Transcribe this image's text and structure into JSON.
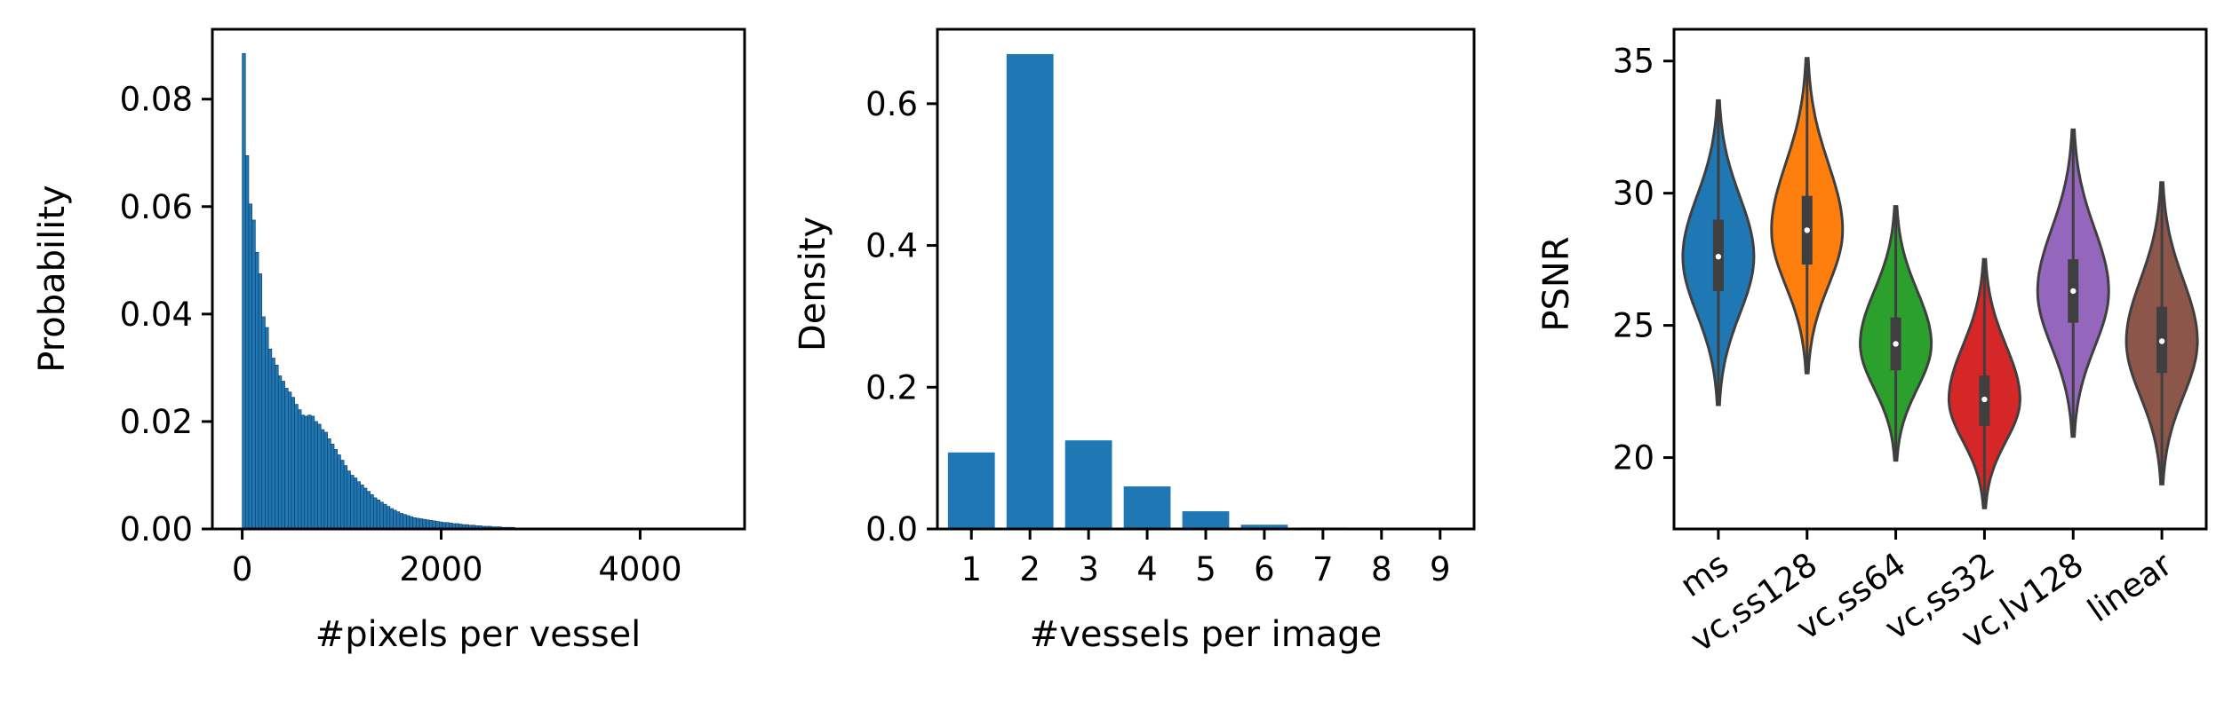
{
  "chart_data": [
    {
      "type": "histogram",
      "xlabel": "#pixels per vessel",
      "ylabel": "Probability",
      "xlim": [
        -300,
        5050
      ],
      "ylim": [
        0,
        0.093
      ],
      "xticks": [
        0,
        2000,
        4000
      ],
      "xtick_labels": [
        "0",
        "2000",
        "4000"
      ],
      "yticks": [
        0,
        0.02,
        0.04,
        0.06,
        0.08
      ],
      "ytick_labels": [
        "0.00",
        "0.02",
        "0.04",
        "0.06",
        "0.08"
      ],
      "bin_width": 33,
      "bins_start": 0,
      "values": [
        0.0885,
        0.0695,
        0.0605,
        0.0575,
        0.0515,
        0.0475,
        0.0395,
        0.0375,
        0.0335,
        0.0318,
        0.0305,
        0.0285,
        0.0275,
        0.0262,
        0.0255,
        0.0245,
        0.0232,
        0.0222,
        0.0212,
        0.021,
        0.0212,
        0.021,
        0.02,
        0.0195,
        0.0185,
        0.018,
        0.0168,
        0.0158,
        0.0148,
        0.0138,
        0.0128,
        0.0118,
        0.0108,
        0.01,
        0.0095,
        0.0088,
        0.0082,
        0.0076,
        0.007,
        0.0064,
        0.0058,
        0.0054,
        0.005,
        0.0046,
        0.0042,
        0.0038,
        0.0035,
        0.0032,
        0.0029,
        0.0027,
        0.0025,
        0.0023,
        0.0021,
        0.002,
        0.0019,
        0.0018,
        0.0017,
        0.0016,
        0.0015,
        0.0014,
        0.0013,
        0.0012,
        0.0012,
        0.0011,
        0.001,
        0.001,
        0.0009,
        0.0008,
        0.0008,
        0.0007,
        0.0007,
        0.0006,
        0.0006,
        0.0005,
        0.0005,
        0.0005,
        0.0004,
        0.0004,
        0.0004,
        0.0003,
        0.0003,
        0.0003,
        0.0003,
        0.0002,
        0.0002,
        0.0002,
        0.0002,
        0.0002,
        0.0001,
        0.0001,
        0.0001,
        0.0001,
        0.0001,
        0.0001,
        0.0001,
        0.0001,
        0.0001,
        0.0001
      ],
      "color": "#1f77b4"
    },
    {
      "type": "bar",
      "xlabel": "#vessels per image",
      "ylabel": "Density",
      "categories": [
        "1",
        "2",
        "3",
        "4",
        "5",
        "6",
        "7",
        "8",
        "9"
      ],
      "values": [
        0.108,
        0.67,
        0.125,
        0.06,
        0.025,
        0.006,
        0.002,
        0.001,
        0.0005
      ],
      "ylim": [
        0,
        0.705
      ],
      "yticks": [
        0,
        0.2,
        0.4,
        0.6
      ],
      "ytick_labels": [
        "0.0",
        "0.2",
        "0.4",
        "0.6"
      ],
      "color": "#1f77b4"
    },
    {
      "type": "violin",
      "xlabel": "",
      "ylabel": "PSNR",
      "categories": [
        "ms",
        "vc,ss128",
        "vc,ss64",
        "vc,ss32",
        "vc,lv128",
        "linear"
      ],
      "ylim": [
        17.3,
        36.2
      ],
      "yticks": [
        20,
        25,
        30,
        35
      ],
      "ytick_labels": [
        "20",
        "25",
        "30",
        "35"
      ],
      "series": [
        {
          "min": 22.0,
          "max": 33.5,
          "q1": 26.3,
          "median": 27.6,
          "q3": 29.0,
          "mode": 27.6,
          "color": "#1f77b4"
        },
        {
          "min": 23.2,
          "max": 35.1,
          "q1": 27.3,
          "median": 28.6,
          "q3": 29.9,
          "mode": 28.6,
          "color": "#ff7f0e"
        },
        {
          "min": 19.9,
          "max": 29.5,
          "q1": 23.3,
          "median": 24.3,
          "q3": 25.3,
          "mode": 24.3,
          "color": "#2ca02c"
        },
        {
          "min": 18.1,
          "max": 27.5,
          "q1": 21.2,
          "median": 22.2,
          "q3": 23.1,
          "mode": 22.2,
          "color": "#d62728"
        },
        {
          "min": 20.8,
          "max": 32.4,
          "q1": 25.1,
          "median": 26.3,
          "q3": 27.5,
          "mode": 26.3,
          "color": "#9467bd"
        },
        {
          "min": 19.0,
          "max": 30.4,
          "q1": 23.2,
          "median": 24.4,
          "q3": 25.7,
          "mode": 24.4,
          "color": "#8c564b"
        }
      ]
    }
  ]
}
